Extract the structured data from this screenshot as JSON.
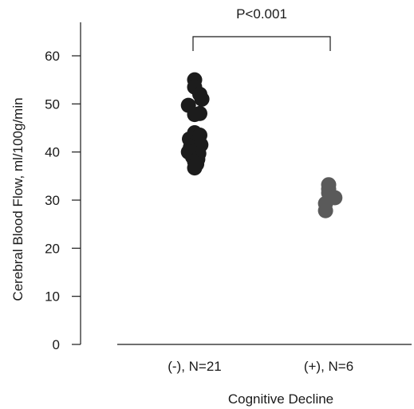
{
  "chart_data": {
    "type": "scatter",
    "title": "",
    "xlabel": "Cognitive Decline",
    "ylabel": "Cerebral Blood Flow, ml/100g/min",
    "ylim": [
      0,
      65
    ],
    "yticks": [
      0,
      10,
      20,
      30,
      40,
      50,
      60
    ],
    "categories": [
      "(-), N=21",
      "(+), N=6"
    ],
    "grid": false,
    "legend": "none",
    "series": [
      {
        "category": "(-), N=21",
        "color": "#1c1c1c",
        "points": [
          {
            "offset": 0,
            "y": 55.0
          },
          {
            "offset": 0,
            "y": 53.5
          },
          {
            "offset": 0.5,
            "y": 52.0
          },
          {
            "offset": 0.7,
            "y": 51.0
          },
          {
            "offset": -0.6,
            "y": 49.7
          },
          {
            "offset": 0.5,
            "y": 48.0
          },
          {
            "offset": 0.0,
            "y": 47.8
          },
          {
            "offset": 0.0,
            "y": 44.0
          },
          {
            "offset": 0.5,
            "y": 43.5
          },
          {
            "offset": -0.5,
            "y": 42.7
          },
          {
            "offset": 0.2,
            "y": 42.0
          },
          {
            "offset": 0.6,
            "y": 41.5
          },
          {
            "offset": -0.4,
            "y": 41.0
          },
          {
            "offset": 0.3,
            "y": 40.5
          },
          {
            "offset": -0.6,
            "y": 40.0
          },
          {
            "offset": 0.4,
            "y": 39.7
          },
          {
            "offset": -0.2,
            "y": 39.0
          },
          {
            "offset": 0.3,
            "y": 38.5
          },
          {
            "offset": 0.0,
            "y": 38.0
          },
          {
            "offset": 0.2,
            "y": 37.5
          },
          {
            "offset": 0.0,
            "y": 36.7
          }
        ]
      },
      {
        "category": "(+), N=6",
        "color": "#5a5a5a",
        "points": [
          {
            "offset": 0.0,
            "y": 33.2
          },
          {
            "offset": 0.0,
            "y": 32.3
          },
          {
            "offset": 0.0,
            "y": 31.5
          },
          {
            "offset": 0.6,
            "y": 30.5
          },
          {
            "offset": -0.3,
            "y": 29.3
          },
          {
            "offset": -0.3,
            "y": 27.8
          }
        ]
      }
    ],
    "annotation": {
      "text": "P<0.001",
      "from": "(-), N=21",
      "to": "(+), N=6",
      "bracket_top": 63.5,
      "bracket_drop": 61.0
    }
  }
}
